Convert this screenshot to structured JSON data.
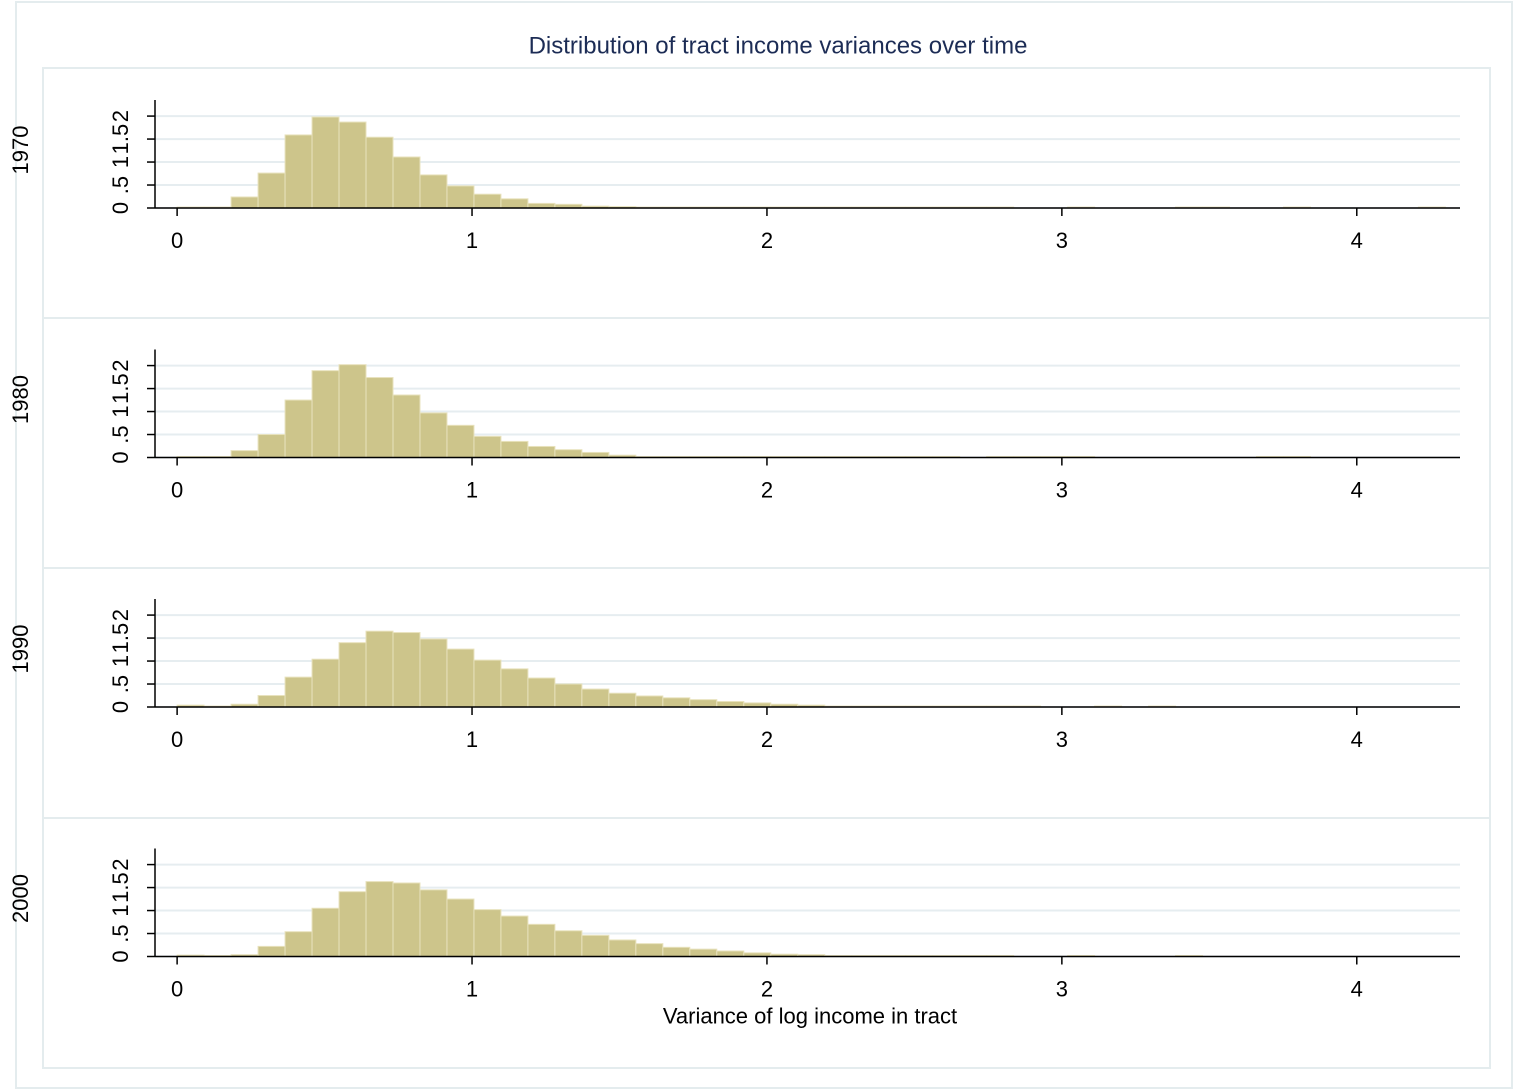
{
  "chart_data": [
    {
      "type": "histogram",
      "title": "Distribution of tract income variances over time",
      "panel": "1970",
      "bins": [
        0,
        0.0915,
        0.183,
        0.2745,
        0.366,
        0.4575,
        0.549,
        0.6405,
        0.732,
        0.8235,
        0.915,
        1.0065,
        1.098,
        1.1895,
        1.281,
        1.3725,
        1.464,
        1.5555,
        1.647,
        1.7385,
        1.83,
        1.9215,
        2.013,
        2.1045,
        2.196,
        2.2875,
        2.379,
        2.4705,
        2.562,
        2.6535,
        2.745,
        2.8365,
        2.928,
        3.0195,
        3.111,
        3.2025,
        3.294,
        3.3855,
        3.477,
        3.5685,
        3.66,
        3.7515,
        3.843,
        3.9345,
        4.026,
        4.1175,
        4.209,
        4.3005
      ],
      "values": [
        0.02,
        0.02,
        0.24,
        0.76,
        1.59,
        1.98,
        1.87,
        1.54,
        1.11,
        0.72,
        0.48,
        0.3,
        0.2,
        0.1,
        0.08,
        0.04,
        0.03,
        0.02,
        0.02,
        0.02,
        0.02,
        0.02,
        0.02,
        0.02,
        0.02,
        0.02,
        0.02,
        0.02,
        0.02,
        0.02,
        0.02,
        0,
        0,
        0.02,
        0,
        0,
        0,
        0.02,
        0.02,
        0,
        0,
        0.02,
        0,
        0,
        0,
        0,
        0.02
      ],
      "color": "#cdc58b",
      "xlim": [
        -0.075,
        4.35
      ],
      "xticks": [
        0,
        1,
        2,
        3,
        4
      ],
      "ylim": [
        0,
        2.35
      ],
      "yticks": [
        0,
        {
          "value": 0.5,
          "label": ".5"
        },
        1,
        1.5,
        2
      ],
      "grid": true
    },
    {
      "type": "histogram",
      "panel": "1980",
      "bins": [
        0,
        0.0915,
        0.183,
        0.2745,
        0.366,
        0.4575,
        0.549,
        0.6405,
        0.732,
        0.8235,
        0.915,
        1.0065,
        1.098,
        1.1895,
        1.281,
        1.3725,
        1.464,
        1.5555,
        1.647,
        1.7385,
        1.83,
        1.9215,
        2.013,
        2.1045,
        2.196,
        2.2875,
        2.379,
        2.4705,
        2.562,
        2.6535,
        2.745,
        2.8365,
        2.928,
        3.0195,
        3.111,
        3.2025,
        3.294,
        3.3855,
        3.477,
        3.5685,
        3.66,
        3.7515,
        3.843,
        3.9345,
        4.026,
        4.1175,
        4.209,
        4.3005
      ],
      "values": [
        0.02,
        0.02,
        0.15,
        0.5,
        1.25,
        1.89,
        2.02,
        1.74,
        1.36,
        0.97,
        0.7,
        0.46,
        0.35,
        0.24,
        0.17,
        0.11,
        0.05,
        0.02,
        0.02,
        0.02,
        0.02,
        0.02,
        0.02,
        0.02,
        0.02,
        0.02,
        0.02,
        0.02,
        0.02,
        0,
        0.02,
        0.02,
        0.02,
        0.02,
        0,
        0,
        0,
        0,
        0,
        0,
        0.02,
        0.02,
        0,
        0,
        0,
        0,
        0
      ],
      "color": "#cdc58b",
      "xlim": [
        -0.075,
        4.35
      ],
      "xticks": [
        0,
        1,
        2,
        3,
        4
      ],
      "ylim": [
        0,
        2.35
      ],
      "yticks": [
        0,
        {
          "value": 0.5,
          "label": ".5"
        },
        1,
        1.5,
        2
      ],
      "grid": true
    },
    {
      "type": "histogram",
      "panel": "1990",
      "bins": [
        0,
        0.0915,
        0.183,
        0.2745,
        0.366,
        0.4575,
        0.549,
        0.6405,
        0.732,
        0.8235,
        0.915,
        1.0065,
        1.098,
        1.1895,
        1.281,
        1.3725,
        1.464,
        1.5555,
        1.647,
        1.7385,
        1.83,
        1.9215,
        2.013,
        2.1045,
        2.196,
        2.2875,
        2.379,
        2.4705,
        2.562,
        2.6535,
        2.745,
        2.8365,
        2.928,
        3.0195,
        3.111,
        3.2025,
        3.294,
        3.3855,
        3.477,
        3.5685,
        3.66,
        3.7515,
        3.843,
        3.9345,
        4.026,
        4.1175,
        4.209,
        4.3005
      ],
      "values": [
        0.04,
        0.02,
        0.06,
        0.25,
        0.65,
        1.04,
        1.4,
        1.65,
        1.62,
        1.48,
        1.26,
        1.02,
        0.83,
        0.63,
        0.5,
        0.39,
        0.3,
        0.24,
        0.2,
        0.16,
        0.12,
        0.09,
        0.06,
        0.04,
        0.02,
        0.02,
        0.02,
        0.02,
        0.02,
        0.02,
        0.02,
        0.02,
        0,
        0,
        0.02,
        0,
        0.02,
        0,
        0,
        0,
        0,
        0,
        0,
        0,
        0,
        0,
        0
      ],
      "color": "#cdc58b",
      "xlim": [
        -0.075,
        4.35
      ],
      "xticks": [
        0,
        1,
        2,
        3,
        4
      ],
      "ylim": [
        0,
        2.35
      ],
      "yticks": [
        0,
        {
          "value": 0.5,
          "label": ".5"
        },
        1,
        1.5,
        2
      ],
      "grid": true
    },
    {
      "type": "histogram",
      "panel": "2000",
      "xlabel": "Variance of log income in tract",
      "bins": [
        0,
        0.0915,
        0.183,
        0.2745,
        0.366,
        0.4575,
        0.549,
        0.6405,
        0.732,
        0.8235,
        0.915,
        1.0065,
        1.098,
        1.1895,
        1.281,
        1.3725,
        1.464,
        1.5555,
        1.647,
        1.7385,
        1.83,
        1.9215,
        2.013,
        2.1045,
        2.196,
        2.2875,
        2.379,
        2.4705,
        2.562,
        2.6535,
        2.745,
        2.8365,
        2.928,
        3.0195,
        3.111,
        3.2025,
        3.294,
        3.3855,
        3.477,
        3.5685,
        3.66,
        3.7515,
        3.843,
        3.9345,
        4.026,
        4.1175,
        4.209,
        4.3005
      ],
      "values": [
        0.03,
        0.02,
        0.04,
        0.22,
        0.54,
        1.05,
        1.41,
        1.63,
        1.6,
        1.45,
        1.25,
        1.02,
        0.88,
        0.7,
        0.56,
        0.46,
        0.36,
        0.28,
        0.2,
        0.16,
        0.12,
        0.08,
        0.05,
        0.04,
        0.02,
        0.02,
        0.02,
        0.02,
        0.02,
        0.02,
        0.02,
        0,
        0,
        0.02,
        0,
        0,
        0,
        0.02,
        0,
        0,
        0,
        0,
        0,
        0,
        0,
        0,
        0
      ],
      "color": "#cdc58b",
      "xlim": [
        -0.075,
        4.35
      ],
      "xticks": [
        0,
        1,
        2,
        3,
        4
      ],
      "ylim": [
        0,
        2.35
      ],
      "yticks": [
        0,
        {
          "value": 0.5,
          "label": ".5"
        },
        1,
        1.5,
        2
      ],
      "grid": true
    }
  ]
}
